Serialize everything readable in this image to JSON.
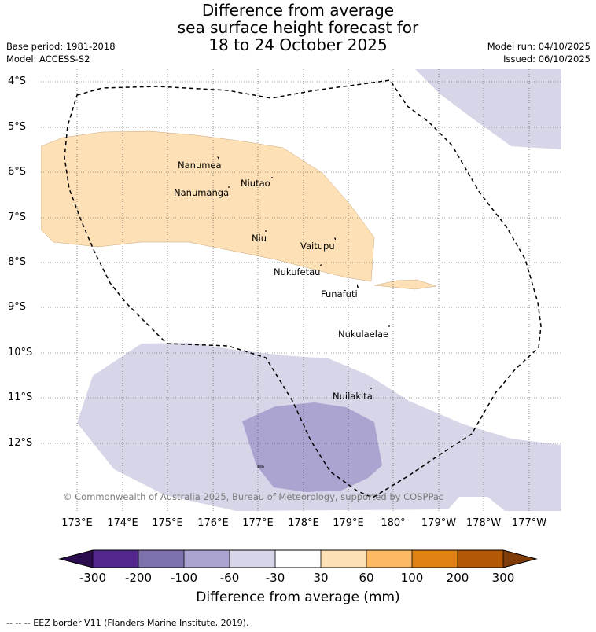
{
  "title": {
    "line1": "Difference from average",
    "line2": "sea surface height forecast for",
    "line3": "18 to 24 October 2025"
  },
  "meta": {
    "base_period": "Base period: 1981-2018",
    "model": "Model: ACCESS-S2",
    "model_run": "Model run: 04/10/2025",
    "issued": "Issued: 06/10/2025"
  },
  "axes": {
    "latitudes": [
      "4°S",
      "5°S",
      "6°S",
      "7°S",
      "8°S",
      "9°S",
      "10°S",
      "11°S",
      "12°S"
    ],
    "longitudes": [
      "173°E",
      "174°E",
      "175°E",
      "176°E",
      "177°E",
      "178°E",
      "179°E",
      "180°",
      "179°W",
      "178°W",
      "177°W"
    ]
  },
  "islands": [
    {
      "name": "Nanumea"
    },
    {
      "name": "Nanumanga"
    },
    {
      "name": "Niutao"
    },
    {
      "name": "Niu"
    },
    {
      "name": "Vaitupu"
    },
    {
      "name": "Nukufetau"
    },
    {
      "name": "Funafuti"
    },
    {
      "name": "Nukulaelae"
    },
    {
      "name": "Nuilakita"
    }
  ],
  "copyright": "© Commonwealth of Australia 2025, Bureau of Meteorology, supported by COSPPac",
  "colorbar": {
    "ticks": [
      "-300",
      "-200",
      "-100",
      "-60",
      "-30",
      "30",
      "60",
      "100",
      "200",
      "300"
    ],
    "colors": {
      "below_min": "#2b0c4e",
      "b1": "#54278f",
      "b2": "#7f71ab",
      "b3": "#aba3d0",
      "b4": "#d6d6e8",
      "b5": "#ffffff",
      "b6": "#fde0b6",
      "b7": "#fdb863",
      "b8": "#e08214",
      "b9": "#b35806",
      "above_max": "#7f3b08"
    },
    "title": "Difference from average (mm)"
  },
  "legend_note": "--  --  -- EEZ border V11 (Flanders Marine Institute, 2019)."
}
